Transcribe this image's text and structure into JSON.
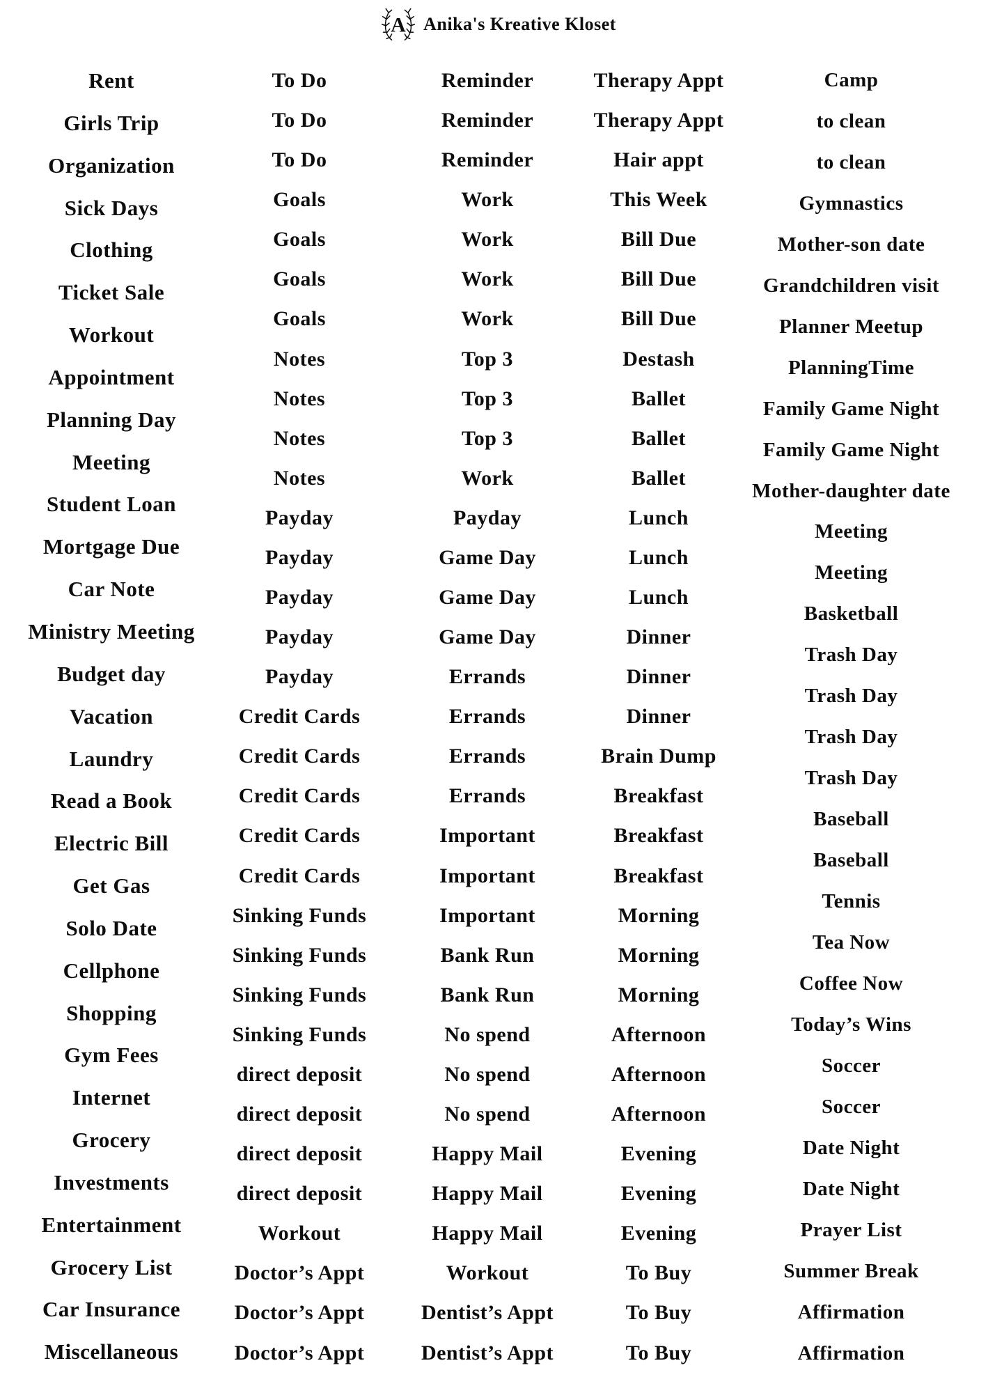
{
  "header": {
    "brand": "Anika's Kreative Kloset",
    "logo_letter": "A"
  },
  "columns": [
    {
      "id": "column-1",
      "items": [
        "Rent",
        "Girls Trip",
        "Organization",
        "Sick Days",
        "Clothing",
        "Ticket Sale",
        "Workout",
        "Appointment",
        "Planning Day",
        "Meeting",
        "Student Loan",
        "Mortgage Due",
        "Car Note",
        "Ministry Meeting",
        "Budget day",
        "Vacation",
        "Laundry",
        "Read a Book",
        "Electric Bill",
        "Get Gas",
        "Solo Date",
        "Cellphone",
        "Shopping",
        "Gym Fees",
        "Internet",
        "Grocery",
        "Investments",
        "Entertainment",
        "Grocery List",
        "Car Insurance",
        "Miscellaneous"
      ]
    },
    {
      "id": "column-2",
      "items": [
        "To Do",
        "To Do",
        "To Do",
        "Goals",
        "Goals",
        "Goals",
        "Goals",
        "Notes",
        "Notes",
        "Notes",
        "Notes",
        "Payday",
        "Payday",
        "Payday",
        "Payday",
        "Payday",
        "Credit Cards",
        "Credit Cards",
        "Credit Cards",
        "Credit Cards",
        "Credit Cards",
        "Sinking Funds",
        "Sinking Funds",
        "Sinking Funds",
        "Sinking Funds",
        "direct deposit",
        "direct deposit",
        "direct deposit",
        "direct deposit",
        "Workout",
        "Doctor’s Appt",
        "Doctor’s Appt",
        "Doctor’s Appt"
      ]
    },
    {
      "id": "column-3",
      "items": [
        "Reminder",
        "Reminder",
        "Reminder",
        "Work",
        "Work",
        "Work",
        "Work",
        "Top 3",
        "Top 3",
        "Top 3",
        "Work",
        "Payday",
        "Game Day",
        "Game Day",
        "Game Day",
        "Errands",
        "Errands",
        "Errands",
        "Errands",
        "Important",
        "Important",
        "Important",
        "Bank Run",
        "Bank Run",
        "No spend",
        "No spend",
        "No spend",
        "Happy Mail",
        "Happy Mail",
        "Happy Mail",
        "Workout",
        "Dentist’s Appt",
        "Dentist’s Appt"
      ]
    },
    {
      "id": "column-4",
      "items": [
        "Therapy Appt",
        "Therapy Appt",
        "Hair appt",
        "This Week",
        "Bill Due",
        "Bill Due",
        "Bill Due",
        "Destash",
        "Ballet",
        "Ballet",
        "Ballet",
        "Lunch",
        "Lunch",
        "Lunch",
        "Dinner",
        "Dinner",
        "Dinner",
        "Brain Dump",
        "Breakfast",
        "Breakfast",
        "Breakfast",
        "Morning",
        "Morning",
        "Morning",
        "Afternoon",
        "Afternoon",
        "Afternoon",
        "Evening",
        "Evening",
        "Evening",
        "To Buy",
        "To Buy",
        "To Buy"
      ]
    },
    {
      "id": "column-5",
      "items": [
        "Camp",
        "to clean",
        "to clean",
        "Gymnastics",
        "Mother-son date",
        "Grandchildren visit",
        "Planner Meetup",
        "PlanningTime",
        "Family Game Night",
        "Family Game Night",
        "Mother-daughter date",
        "Meeting",
        "Meeting",
        "Basketball",
        "Trash Day",
        "Trash Day",
        "Trash Day",
        "Trash Day",
        "Baseball",
        "Baseball",
        "Tennis",
        "Tea Now",
        "Coffee Now",
        "Today’s Wins",
        "Soccer",
        "Soccer",
        "Date Night",
        "Date Night",
        "Prayer List",
        "Summer Break",
        "Affirmation",
        "Affirmation"
      ]
    }
  ]
}
